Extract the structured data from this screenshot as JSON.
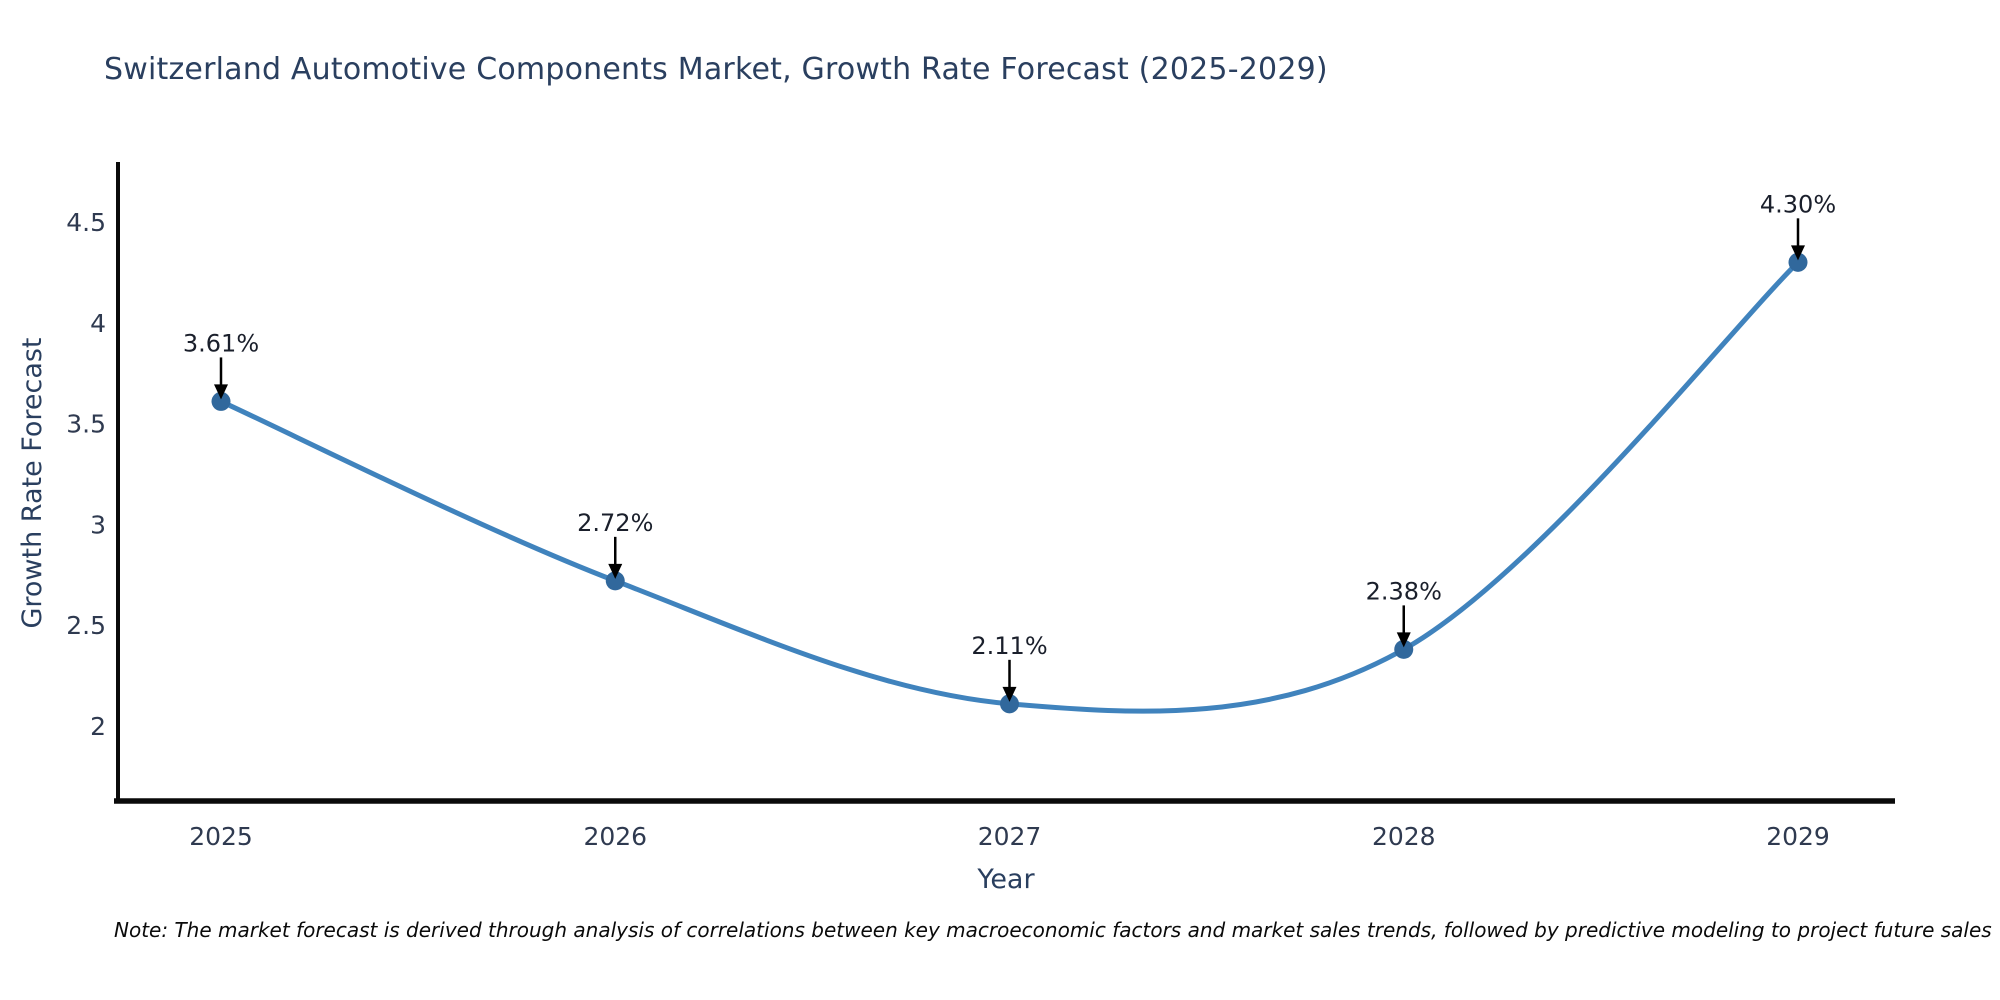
{
  "chart_data": {
    "type": "line",
    "title": "Switzerland Automotive Components Market, Growth Rate Forecast (2025-2029)",
    "xlabel": "Year",
    "ylabel": "Growth Rate Forecast",
    "x": [
      2025,
      2026,
      2027,
      2028,
      2029
    ],
    "values": [
      3.61,
      2.72,
      2.11,
      2.38,
      4.3
    ],
    "point_labels": [
      "3.61%",
      "2.72%",
      "2.11%",
      "2.38%",
      "4.30%"
    ],
    "x_ticks": [
      "2025",
      "2026",
      "2027",
      "2028",
      "2029"
    ],
    "y_ticks": [
      "4.5",
      "4",
      "3.5",
      "3",
      "2.5",
      "2"
    ],
    "ylim": [
      1.62,
      4.8
    ],
    "line_shape": "spline",
    "grid": false,
    "legend": false,
    "colors": {
      "line": "#4083bd",
      "marker": "#31689c",
      "arrow": "#000000",
      "axis_line": "#0a0a0a",
      "title_text": "#2a3f5f",
      "tick_text": "#2f3a50",
      "annotation_text": "#1a1f2b",
      "background": "#ffffff"
    }
  },
  "note": {
    "text": "Note: The market forecast is derived through analysis of correlations between key macroeconomic factors and market sales trends, followed by predictive modeling to project future sales"
  }
}
